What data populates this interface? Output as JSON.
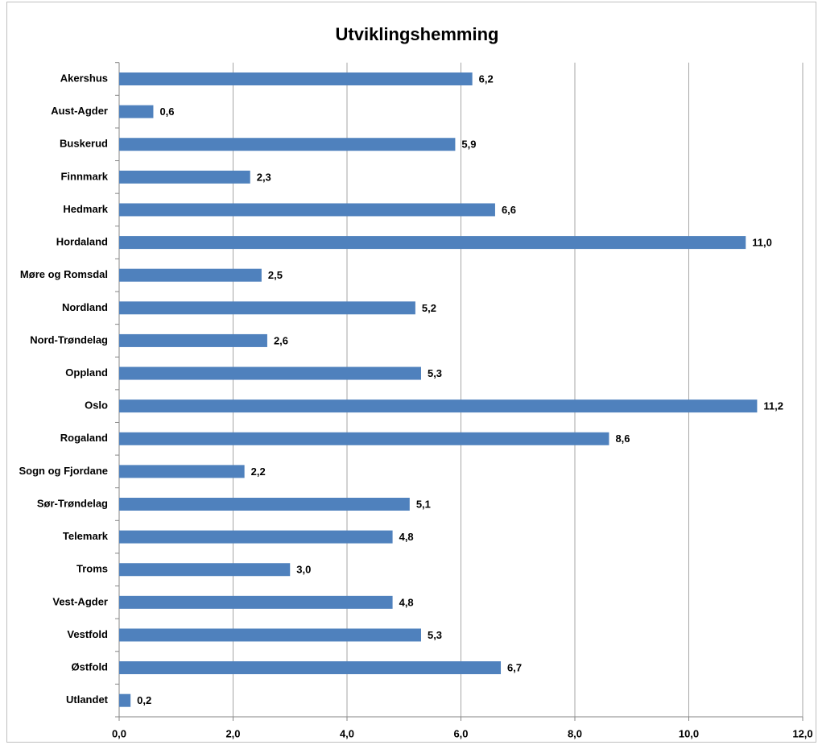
{
  "chart_data": {
    "type": "bar",
    "orientation": "horizontal",
    "title": "Utviklingshemming",
    "categories": [
      "Akershus",
      "Aust-Agder",
      "Buskerud",
      "Finnmark",
      "Hedmark",
      "Hordaland",
      "Møre og Romsdal",
      "Nordland",
      "Nord-Trøndelag",
      "Oppland",
      "Oslo",
      "Rogaland",
      "Sogn og Fjordane",
      "Sør-Trøndelag",
      "Telemark",
      "Troms",
      "Vest-Agder",
      "Vestfold",
      "Østfold",
      "Utlandet"
    ],
    "values": [
      6.2,
      0.6,
      5.9,
      2.3,
      6.6,
      11.0,
      2.5,
      5.2,
      2.6,
      5.3,
      11.2,
      8.6,
      2.2,
      5.1,
      4.8,
      3.0,
      4.8,
      5.3,
      6.7,
      0.2
    ],
    "value_labels": [
      "6,2",
      "0,6",
      "5,9",
      "2,3",
      "6,6",
      "11,0",
      "2,5",
      "5,2",
      "2,6",
      "5,3",
      "11,2",
      "8,6",
      "2,2",
      "5,1",
      "4,8",
      "3,0",
      "4,8",
      "5,3",
      "6,7",
      "0,2"
    ],
    "color": "#4f81bd",
    "xlim": [
      0,
      12
    ],
    "xticks": [
      {
        "value": 0,
        "label": "0,0"
      },
      {
        "value": 2,
        "label": "2,0"
      },
      {
        "value": 4,
        "label": "4,0"
      },
      {
        "value": 6,
        "label": "6,0"
      },
      {
        "value": 8,
        "label": "8,0"
      },
      {
        "value": 10,
        "label": "10,0"
      },
      {
        "value": 12,
        "label": "12,0"
      }
    ],
    "grid": true
  }
}
